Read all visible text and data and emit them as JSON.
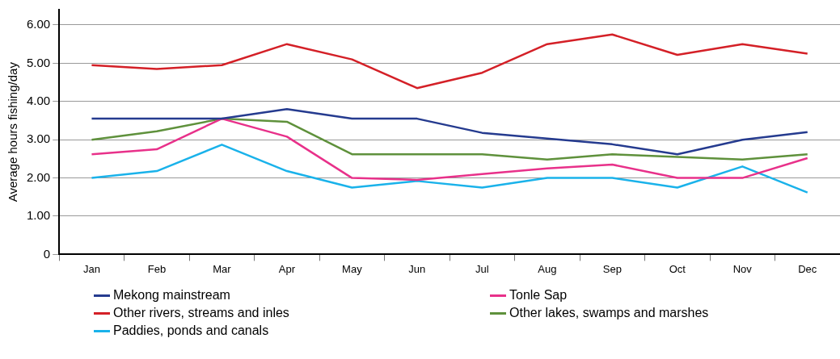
{
  "chart_data": {
    "type": "line",
    "ylabel": "Average hours fishing/day",
    "categories": [
      "Jan",
      "Feb",
      "Mar",
      "Apr",
      "May",
      "Jun",
      "Jul",
      "Aug",
      "Sep",
      "Oct",
      "Nov",
      "Dec"
    ],
    "series": [
      {
        "name": "Mekong mainstream",
        "color": "#253b8f",
        "values": [
          3.55,
          3.55,
          3.55,
          3.8,
          3.55,
          3.55,
          3.18,
          3.03,
          2.88,
          2.62,
          3.0,
          3.2
        ]
      },
      {
        "name": "Tonle Sap",
        "color": "#e8318a",
        "values": [
          2.62,
          2.75,
          3.55,
          3.08,
          2.0,
          1.95,
          2.1,
          2.25,
          2.35,
          2.0,
          2.0,
          2.52
        ]
      },
      {
        "name": "Other rivers, streams and inles",
        "color": "#d42027",
        "values": [
          4.95,
          4.85,
          4.95,
          5.5,
          5.1,
          4.35,
          4.75,
          5.5,
          5.75,
          5.22,
          5.5,
          5.25
        ]
      },
      {
        "name": "Other lakes, swamps and marshes",
        "color": "#5f913c",
        "values": [
          3.0,
          3.22,
          3.55,
          3.47,
          2.62,
          2.62,
          2.62,
          2.48,
          2.62,
          2.55,
          2.48,
          2.62
        ]
      },
      {
        "name": "Paddies, ponds and canals",
        "color": "#1ab2ea",
        "values": [
          2.0,
          2.18,
          2.87,
          2.18,
          1.75,
          1.92,
          1.75,
          2.0,
          2.0,
          1.75,
          2.3,
          1.62
        ]
      }
    ],
    "ylim": [
      0,
      6.4
    ],
    "yticks": [
      {
        "value": 0,
        "label": "0"
      },
      {
        "value": 1,
        "label": "1.00"
      },
      {
        "value": 2,
        "label": "2.00"
      },
      {
        "value": 3,
        "label": "3.00"
      },
      {
        "value": 4,
        "label": "4.00"
      },
      {
        "value": 5,
        "label": "5.00"
      },
      {
        "value": 6,
        "label": "6.00"
      }
    ],
    "grid": "y",
    "legend": "bottom",
    "marker": "none",
    "line_style": "solid"
  }
}
